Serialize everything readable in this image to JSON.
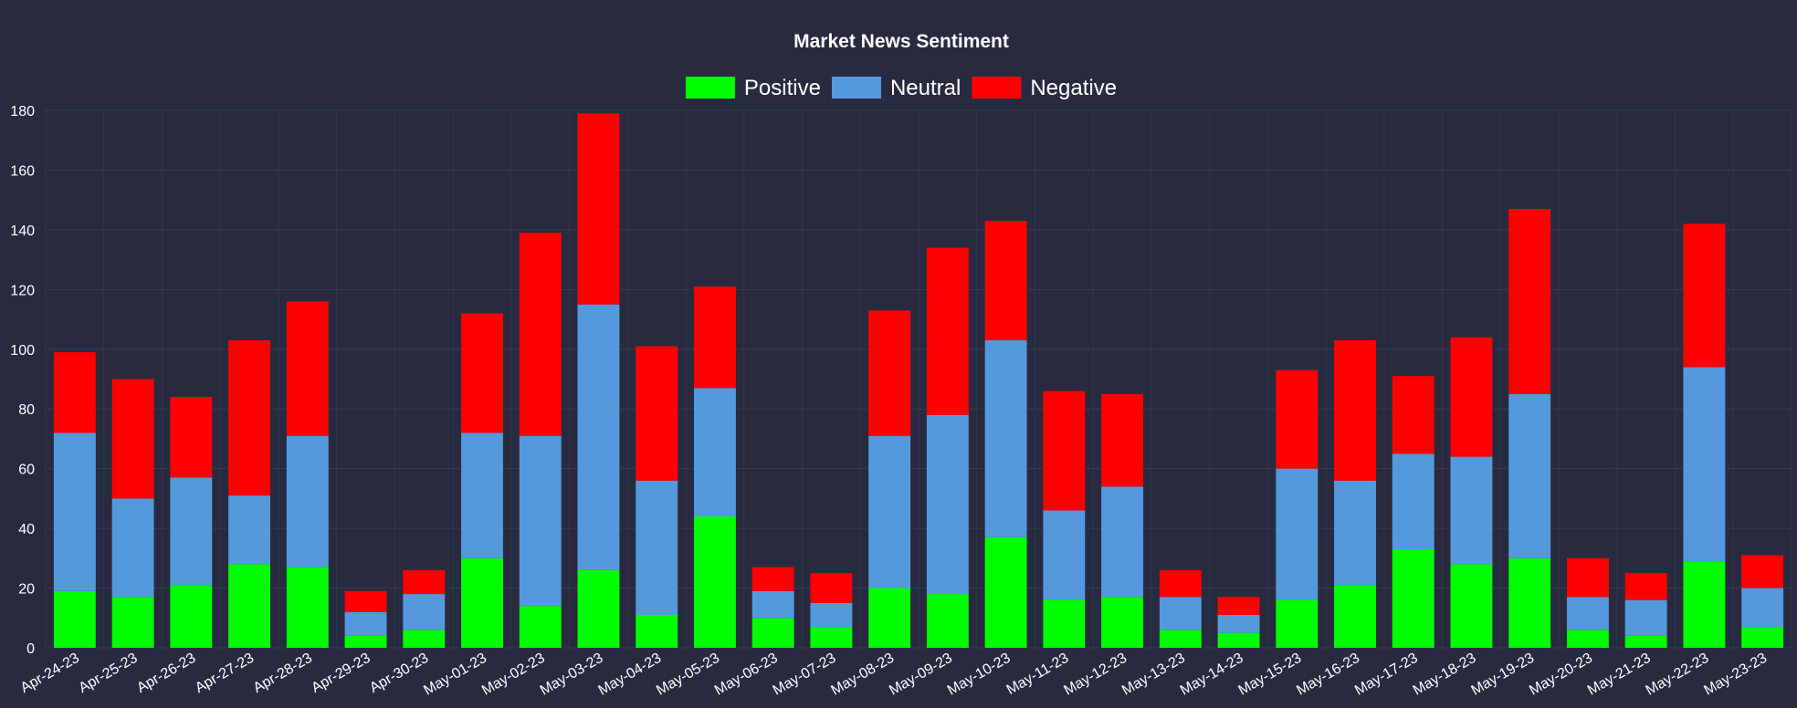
{
  "chart_data": {
    "type": "bar",
    "stacked": true,
    "title": "Market News Sentiment",
    "xlabel": "",
    "ylabel": "",
    "ylim": [
      0,
      180
    ],
    "yticks": [
      0,
      20,
      40,
      60,
      80,
      100,
      120,
      140,
      160,
      180
    ],
    "grid": true,
    "legend_position": "top-center",
    "categories": [
      "Apr-24-23",
      "Apr-25-23",
      "Apr-26-23",
      "Apr-27-23",
      "Apr-28-23",
      "Apr-29-23",
      "Apr-30-23",
      "May-01-23",
      "May-02-23",
      "May-03-23",
      "May-04-23",
      "May-05-23",
      "May-06-23",
      "May-07-23",
      "May-08-23",
      "May-09-23",
      "May-10-23",
      "May-11-23",
      "May-12-23",
      "May-13-23",
      "May-14-23",
      "May-15-23",
      "May-16-23",
      "May-17-23",
      "May-18-23",
      "May-19-23",
      "May-20-23",
      "May-21-23",
      "May-22-23",
      "May-23-23"
    ],
    "series": [
      {
        "name": "Positive",
        "color": "#00ff00",
        "values": [
          19,
          17,
          21,
          28,
          27,
          4,
          6,
          30,
          14,
          26,
          11,
          44,
          10,
          7,
          20,
          18,
          37,
          16,
          17,
          6,
          5,
          16,
          21,
          33,
          28,
          30,
          6,
          4,
          29,
          7
        ]
      },
      {
        "name": "Neutral",
        "color": "#5599dd",
        "values": [
          53,
          33,
          36,
          23,
          44,
          8,
          12,
          42,
          57,
          89,
          45,
          43,
          9,
          8,
          51,
          60,
          66,
          30,
          37,
          11,
          6,
          44,
          35,
          32,
          36,
          55,
          11,
          12,
          65,
          13
        ]
      },
      {
        "name": "Negative",
        "color": "#ff0000",
        "values": [
          27,
          40,
          27,
          52,
          45,
          7,
          8,
          40,
          68,
          64,
          45,
          34,
          8,
          10,
          42,
          56,
          40,
          40,
          31,
          9,
          6,
          33,
          47,
          26,
          40,
          62,
          13,
          9,
          48,
          11
        ]
      }
    ]
  }
}
